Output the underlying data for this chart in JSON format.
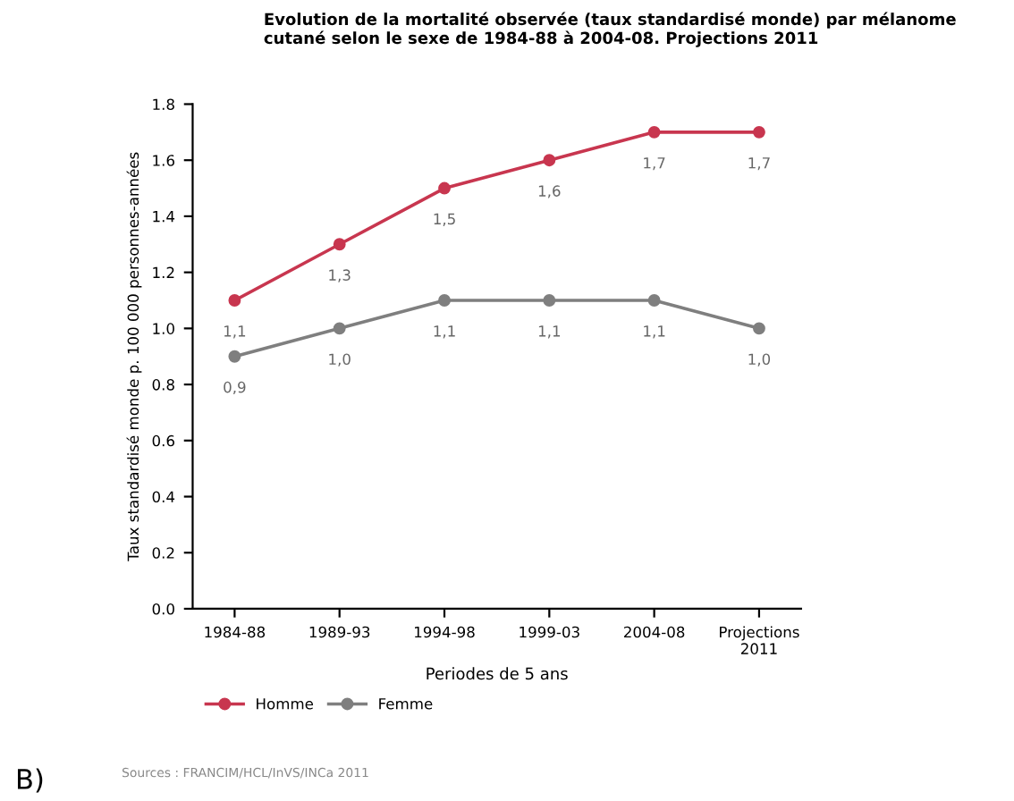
{
  "chart_data": {
    "type": "line",
    "title": "Evolution de la mortalité observée (taux standardisé monde) par mélanome\ncutané selon le sexe de 1984-88 à 2004-08. Projections 2011",
    "xlabel": "Periodes de 5 ans",
    "ylabel": "Taux standardisé monde p. 100 000 personnes-années",
    "categories": [
      "1984-88",
      "1989-93",
      "1994-98",
      "1999-03",
      "2004-08",
      "Projections\n2011"
    ],
    "series": [
      {
        "name": "Homme",
        "color": "#c8364f",
        "values": [
          1.1,
          1.3,
          1.5,
          1.6,
          1.7,
          1.7
        ],
        "value_labels": [
          "1,1",
          "1,3",
          "1,5",
          "1,6",
          "1,7",
          "1,7"
        ]
      },
      {
        "name": "Femme",
        "color": "#7f7f7f",
        "values": [
          0.9,
          1.0,
          1.1,
          1.1,
          1.1,
          1.0
        ],
        "value_labels": [
          "0,9",
          "1,0",
          "1,1",
          "1,1",
          "1,1",
          "1,0"
        ]
      }
    ],
    "ylim": [
      0,
      1.8
    ],
    "yticks": [
      "0.0",
      "0.2",
      "0.4",
      "0.6",
      "0.8",
      "1.0",
      "1.2",
      "1.4",
      "1.6",
      "1.8"
    ],
    "grid": false,
    "legend": "bottom left",
    "marker": "circle",
    "line_style": "solid",
    "annotations": [
      "B)",
      "Sources : FRANCIM/HCL/InVS/INCa 2011"
    ]
  }
}
